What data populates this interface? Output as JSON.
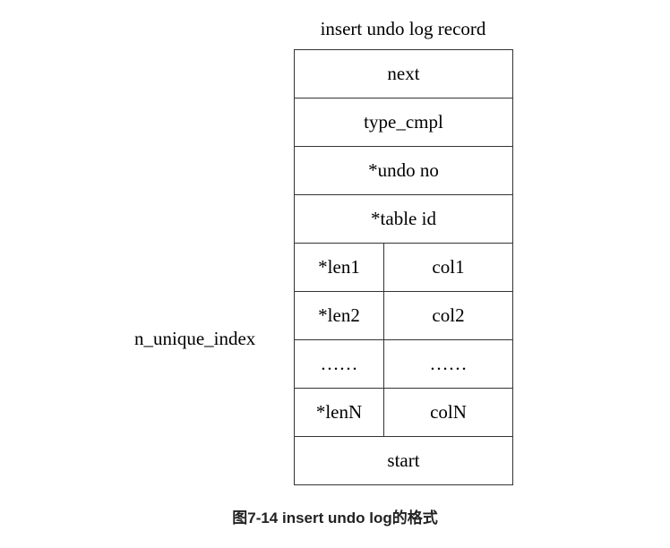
{
  "diagram": {
    "title": "insert undo log record",
    "side_label": "n_unique_index",
    "rows": {
      "next": "next",
      "type_cmpl": "type_cmpl",
      "undo_no": "*undo no",
      "table_id": "*table id",
      "start": "start"
    },
    "columns": [
      {
        "len": "*len1",
        "col": "col1"
      },
      {
        "len": "*len2",
        "col": "col2"
      },
      {
        "len": "……",
        "col": "……"
      },
      {
        "len": "*lenN",
        "col": "colN"
      }
    ]
  },
  "caption": "图7-14 insert undo log的格式"
}
